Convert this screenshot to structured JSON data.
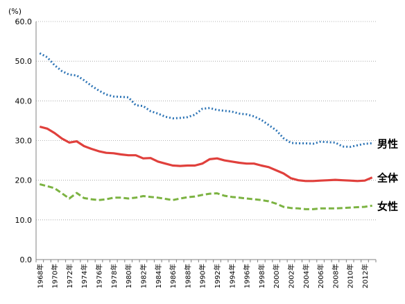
{
  "chart_data": {
    "type": "line",
    "unit_label": "(%)",
    "ylim": [
      0,
      60
    ],
    "y_ticks": [
      "0.0",
      "10.0",
      "20.0",
      "30.0",
      "40.0",
      "50.0",
      "60.0"
    ],
    "x": [
      1968,
      1969,
      1970,
      1971,
      1972,
      1973,
      1974,
      1975,
      1976,
      1977,
      1978,
      1979,
      1980,
      1981,
      1982,
      1983,
      1984,
      1985,
      1986,
      1987,
      1988,
      1989,
      1990,
      1991,
      1992,
      1993,
      1994,
      1995,
      1996,
      1997,
      1998,
      1999,
      2000,
      2001,
      2002,
      2003,
      2004,
      2005,
      2006,
      2007,
      2008,
      2009,
      2010,
      2011,
      2012,
      2013
    ],
    "x_tick_labels": [
      "1968年",
      "1970年",
      "1972年",
      "1974年",
      "1976年",
      "1978年",
      "1980年",
      "1982年",
      "1984年",
      "1986年",
      "1988年",
      "1990年",
      "1992年",
      "1994年",
      "1996年",
      "1998年",
      "2000年",
      "2002年",
      "2004年",
      "2006年",
      "2008年",
      "2010年",
      "2012年"
    ],
    "grid": "horizontal",
    "series": [
      {
        "name": "男性",
        "color": "#2e75b6",
        "style": "dotted",
        "values": [
          52.0,
          51.0,
          49.0,
          47.5,
          46.6,
          46.4,
          45.2,
          43.8,
          42.6,
          41.6,
          41.1,
          41.0,
          40.9,
          38.9,
          38.7,
          37.4,
          36.8,
          36.0,
          35.6,
          35.7,
          35.9,
          36.5,
          38.0,
          38.2,
          37.7,
          37.5,
          37.3,
          36.8,
          36.6,
          36.1,
          35.2,
          33.9,
          32.6,
          30.6,
          29.4,
          29.3,
          29.3,
          29.2,
          29.7,
          29.6,
          29.5,
          28.5,
          28.4,
          28.8,
          29.2,
          29.3
        ]
      },
      {
        "name": "全体",
        "color": "#e0403c",
        "style": "solid",
        "values": [
          33.5,
          33.0,
          31.9,
          30.5,
          29.5,
          29.8,
          28.6,
          27.9,
          27.3,
          26.9,
          26.8,
          26.5,
          26.3,
          26.3,
          25.5,
          25.6,
          24.7,
          24.2,
          23.7,
          23.6,
          23.7,
          23.7,
          24.2,
          25.3,
          25.5,
          25.0,
          24.7,
          24.4,
          24.2,
          24.2,
          23.7,
          23.3,
          22.5,
          21.7,
          20.5,
          20.0,
          19.8,
          19.8,
          19.9,
          20.0,
          20.1,
          20.0,
          19.9,
          19.8,
          19.9,
          20.7
        ]
      },
      {
        "name": "女性",
        "color": "#7cb342",
        "style": "dashed",
        "values": [
          19.0,
          18.5,
          18.0,
          16.7,
          15.4,
          16.8,
          15.5,
          15.2,
          15.0,
          15.2,
          15.6,
          15.6,
          15.4,
          15.6,
          16.0,
          15.8,
          15.6,
          15.3,
          15.0,
          15.4,
          15.7,
          15.9,
          16.3,
          16.6,
          16.7,
          16.1,
          15.8,
          15.6,
          15.4,
          15.2,
          15.0,
          14.7,
          14.1,
          13.3,
          13.0,
          12.9,
          12.7,
          12.7,
          12.9,
          12.9,
          12.9,
          13.0,
          13.1,
          13.2,
          13.3,
          13.6
        ]
      }
    ]
  }
}
